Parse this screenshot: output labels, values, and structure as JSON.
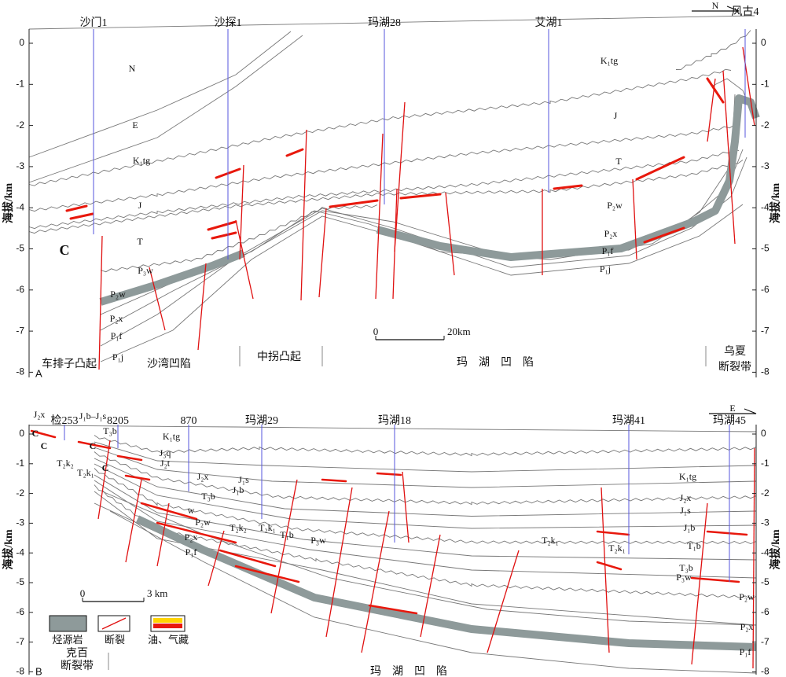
{
  "panels": [
    {
      "label": "A",
      "compass": "N",
      "y_axis_title": "海拔/km",
      "yticks": [
        0,
        -1,
        -2,
        -3,
        -4,
        -5,
        -6,
        -7,
        -8
      ],
      "wells": [
        "沙门1",
        "沙探1",
        "玛湖28",
        "艾湖1",
        "风古4"
      ],
      "formations": [
        "N",
        "E",
        "K₁tg",
        "J",
        "T",
        "C",
        "P₃w",
        "P₂w",
        "P₂x",
        "P₁f",
        "P₁j",
        "K₁tg",
        "J",
        "T",
        "P₂w",
        "P₂x",
        "P₁f",
        "P₁j"
      ],
      "scale_bar": [
        "0",
        "20km"
      ],
      "regions": [
        [
          "车排子凸起"
        ],
        [
          "沙湾凹陷"
        ],
        [
          "中拐凸起"
        ],
        [
          "玛　湖　凹　陷"
        ],
        [
          "乌夏",
          "断裂带"
        ]
      ]
    },
    {
      "label": "B",
      "compass": "E",
      "y_axis_title": "海拔/km",
      "yticks": [
        0,
        -1,
        -2,
        -3,
        -4,
        -5,
        -6,
        -7,
        -8
      ],
      "wells": [
        "检253",
        "8205",
        "870",
        "玛湖29",
        "玛湖18",
        "玛湖41",
        "玛湖45"
      ],
      "formations": [
        "J₂x",
        "J₁b–J₁s",
        "T₃b",
        "C",
        "C",
        "C",
        "C",
        "T₂k₂",
        "T₂k₁",
        "K₁tg",
        "J₃q",
        "J₂t",
        "J₂x",
        "J₁s",
        "J₁b",
        "T₃b",
        "w",
        "P₂w",
        "T₂k₂",
        "T₂k₁",
        "T₁b",
        "P₃w",
        "P₂x",
        "P₁f",
        "T₂k₁",
        "T₂k₁",
        "K₁tg",
        "J₂x",
        "J₁s",
        "J₁b",
        "T₁b",
        "T₃b",
        "P₃w",
        "P₂w",
        "P₂x",
        "P₁f"
      ],
      "scale_bar": [
        "0",
        "3 km"
      ],
      "regions": [
        [
          "克百",
          "断裂带"
        ],
        [
          "玛　湖　凹　陷"
        ]
      ]
    }
  ],
  "legend": [
    "烃源岩",
    "断裂",
    "油、气藏"
  ]
}
